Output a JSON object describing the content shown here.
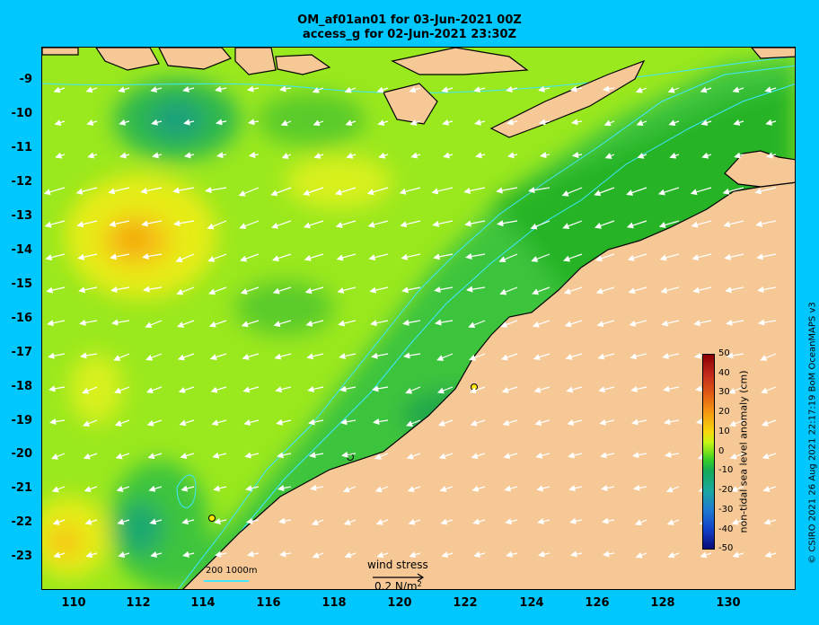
{
  "title_line1": "OM_af01an01 for 03-Jun-2021 00Z",
  "title_line2": "access_g for 02-Jun-2021 23:30Z",
  "map": {
    "lon_range": [
      109,
      132
    ],
    "lat_range": [
      -24,
      -8
    ],
    "lon_ticks": [
      "110",
      "112",
      "114",
      "116",
      "118",
      "120",
      "122",
      "124",
      "126",
      "128",
      "130"
    ],
    "lat_ticks": [
      "-9",
      "-10",
      "-11",
      "-12",
      "-13",
      "-14",
      "-15",
      "-16",
      "-17",
      "-18",
      "-19",
      "-20",
      "-21",
      "-22",
      "-23"
    ],
    "colors": {
      "land": "#f5c896",
      "contour": "#3fe6ff",
      "arrow": "#ffffff",
      "background": "#00c8ff"
    }
  },
  "scale_bar": {
    "label": "200  1000m"
  },
  "wind_stress": {
    "label": "wind stress",
    "reference": "0.2 N/m",
    "exponent": "2"
  },
  "colorbar": {
    "label": "non-tidal sea level anomaly (cm)",
    "ticks": [
      "50",
      "40",
      "30",
      "20",
      "10",
      "0",
      "-10",
      "-20",
      "-30",
      "-40",
      "-50"
    ]
  },
  "credit": "© CSIRO 2021  26 Aug 2021 22:17:19 BoM OceanMAPS v3"
}
